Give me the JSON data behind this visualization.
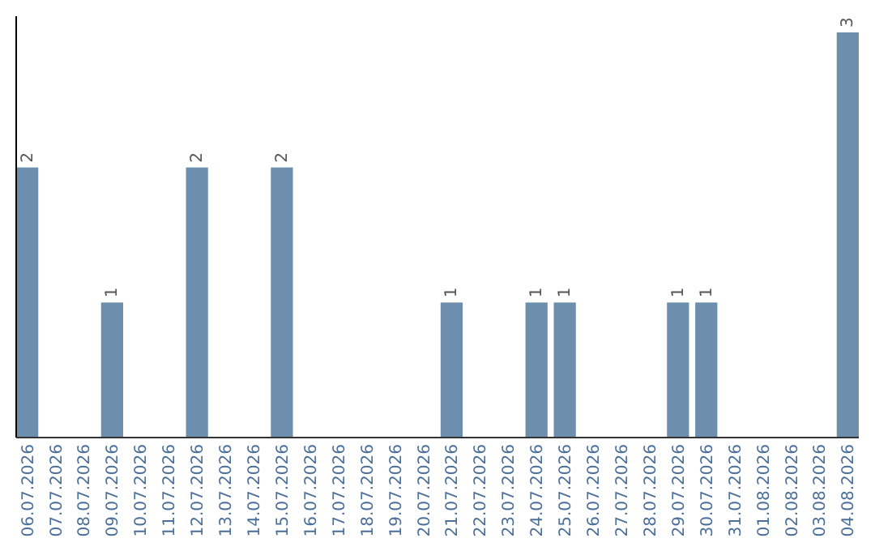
{
  "chart_data": {
    "type": "bar",
    "categories": [
      "06.07.2026",
      "07.07.2026",
      "08.07.2026",
      "09.07.2026",
      "10.07.2026",
      "11.07.2026",
      "12.07.2026",
      "13.07.2026",
      "14.07.2026",
      "15.07.2026",
      "16.07.2026",
      "17.07.2026",
      "18.07.2026",
      "19.07.2026",
      "20.07.2026",
      "21.07.2026",
      "22.07.2026",
      "23.07.2026",
      "24.07.2026",
      "25.07.2026",
      "26.07.2026",
      "27.07.2026",
      "28.07.2026",
      "29.07.2026",
      "30.07.2026",
      "31.07.2026",
      "01.08.2026",
      "02.08.2026",
      "03.08.2026",
      "04.08.2026"
    ],
    "values": [
      2,
      0,
      0,
      1,
      0,
      0,
      2,
      0,
      0,
      2,
      0,
      0,
      0,
      0,
      0,
      1,
      0,
      0,
      1,
      1,
      0,
      0,
      0,
      1,
      1,
      0,
      0,
      0,
      0,
      3
    ],
    "value_labels": [
      "2",
      null,
      null,
      "1",
      null,
      null,
      "2",
      null,
      null,
      "2",
      null,
      null,
      null,
      null,
      null,
      "1",
      null,
      null,
      "1",
      "1",
      null,
      null,
      null,
      "1",
      "1",
      null,
      null,
      null,
      null,
      "3"
    ],
    "color": "#6d8fad",
    "ylim": [
      0,
      3
    ],
    "tick_labels": "x"
  }
}
